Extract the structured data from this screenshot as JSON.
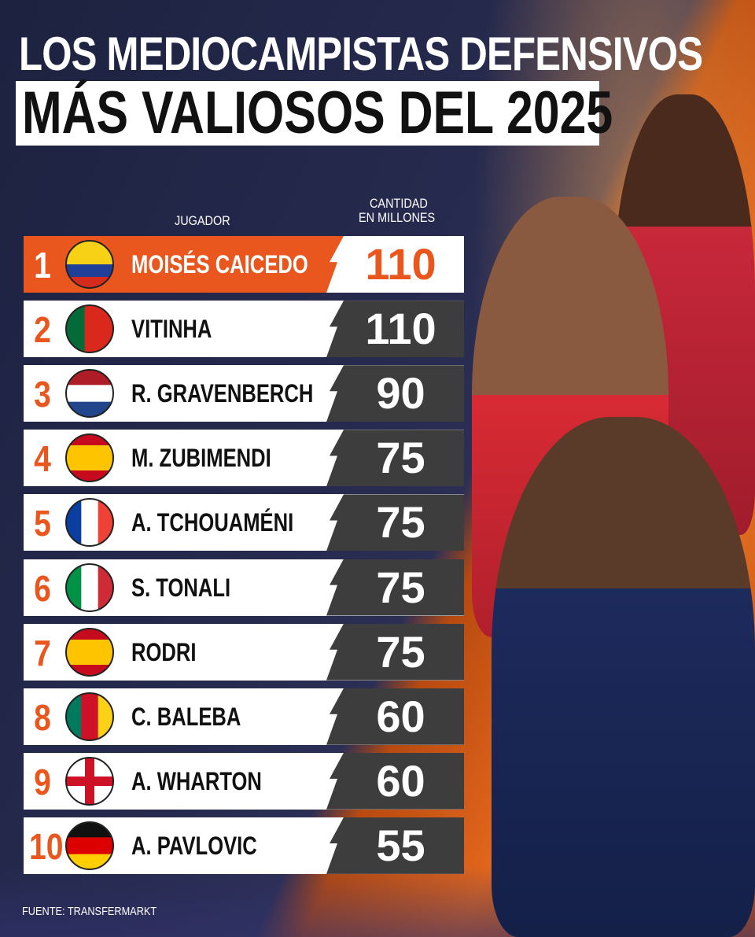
{
  "title": {
    "line1": "LOS MEDIOCAMPISTAS DEFENSIVOS",
    "line2": "MÁS VALIOSOS DEL 2025"
  },
  "headers": {
    "player": "JUGADOR",
    "value_line1": "CANTIDAD",
    "value_line2": "EN MILLONES"
  },
  "source": "FUENTE: TRANSFERMARKT",
  "colors": {
    "accent": "#e9571f",
    "value_box": "#3d3d3d",
    "row_bg": "#ffffff"
  },
  "chart_data": {
    "type": "table",
    "title": "LOS MEDIOCAMPISTAS DEFENSIVOS MÁS VALIOSOS DEL 2025",
    "columns": [
      "JUGADOR",
      "CANTIDAD EN MILLONES"
    ],
    "rows": [
      {
        "rank": "1",
        "name": "MOISÉS CAICEDO",
        "value": "110",
        "flag": {
          "dir": "h",
          "stripes": [
            [
              "#f7d116",
              2
            ],
            [
              "#1f3f99",
              1
            ],
            [
              "#d52b1e",
              1
            ]
          ]
        }
      },
      {
        "rank": "2",
        "name": "VITINHA",
        "value": "110",
        "flag": {
          "dir": "v",
          "stripes": [
            [
              "#046a38",
              2
            ],
            [
              "#da291c",
              3
            ]
          ]
        }
      },
      {
        "rank": "3",
        "name": "R. GRAVENBERCH",
        "value": "90",
        "flag": {
          "dir": "h",
          "stripes": [
            [
              "#ae1c28",
              1
            ],
            [
              "#ffffff",
              1
            ],
            [
              "#21468b",
              1
            ]
          ]
        }
      },
      {
        "rank": "4",
        "name": "M. ZUBIMENDI",
        "value": "75",
        "flag": {
          "dir": "h",
          "stripes": [
            [
              "#c60b1e",
              1
            ],
            [
              "#ffc400",
              2
            ],
            [
              "#c60b1e",
              1
            ]
          ]
        }
      },
      {
        "rank": "5",
        "name": "A. TCHOUAMÉNI",
        "value": "75",
        "flag": {
          "dir": "v",
          "stripes": [
            [
              "#0a3ea0",
              1
            ],
            [
              "#ffffff",
              1
            ],
            [
              "#ef4135",
              1
            ]
          ]
        }
      },
      {
        "rank": "6",
        "name": "S. TONALI",
        "value": "75",
        "flag": {
          "dir": "v",
          "stripes": [
            [
              "#009246",
              1
            ],
            [
              "#ffffff",
              1
            ],
            [
              "#ce2b37",
              1
            ]
          ]
        }
      },
      {
        "rank": "7",
        "name": "RODRI",
        "value": "75",
        "flag": {
          "dir": "h",
          "stripes": [
            [
              "#c60b1e",
              1
            ],
            [
              "#ffc400",
              2
            ],
            [
              "#c60b1e",
              1
            ]
          ]
        }
      },
      {
        "rank": "8",
        "name": "C. BALEBA",
        "value": "60",
        "flag": {
          "dir": "v",
          "stripes": [
            [
              "#007a5e",
              1
            ],
            [
              "#ce1126",
              1
            ],
            [
              "#fcd116",
              1
            ]
          ]
        }
      },
      {
        "rank": "9",
        "name": "A. WHARTON",
        "value": "60",
        "flag": {
          "dir": "cross",
          "stripes": [
            [
              "#ffffff",
              1
            ],
            [
              "#ce1124",
              1
            ]
          ]
        }
      },
      {
        "rank": "10",
        "name": "A. PAVLOVIC",
        "value": "55",
        "flag": {
          "dir": "h",
          "stripes": [
            [
              "#111111",
              1
            ],
            [
              "#dd0000",
              1
            ],
            [
              "#ffce00",
              1
            ]
          ]
        }
      }
    ]
  }
}
